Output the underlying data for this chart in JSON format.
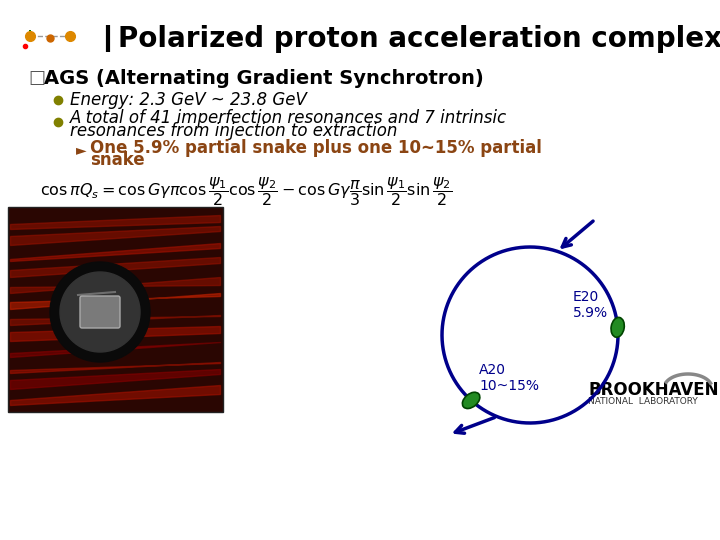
{
  "title": "Polarized proton acceleration complex at BNL",
  "title_fontsize": 20,
  "title_color": "#000000",
  "bg_color": "#ffffff",
  "header_line_color": "#000000",
  "ags_text": "AGS (Alternating Gradient Synchrotron)",
  "ags_fontsize": 14,
  "bullet1": "Energy: 2.3 GeV ~ 23.8 GeV",
  "bullet2a": "A total of 41 imperfection resonances and 7 intrinsic",
  "bullet2b": "resonances from injection to extraction",
  "sub_bullet1": "One 5.9% partial snake plus one 10~15% partial",
  "sub_bullet2": "snake",
  "bullet_fontsize": 12,
  "sub_bullet_fontsize": 12,
  "sub_bullet_color": "#8B4513",
  "olive_bullet_color": "#808000",
  "circle_color": "#00008B",
  "circle_lw": 2.5,
  "e20_label": "E20\n5.9%",
  "a20_label": "A20\n10~15%",
  "label_color": "#00008B",
  "label_fontsize": 10,
  "formula_color": "#000000",
  "brookhaven_color": "#000000",
  "bnl_sub_color": "#333333"
}
